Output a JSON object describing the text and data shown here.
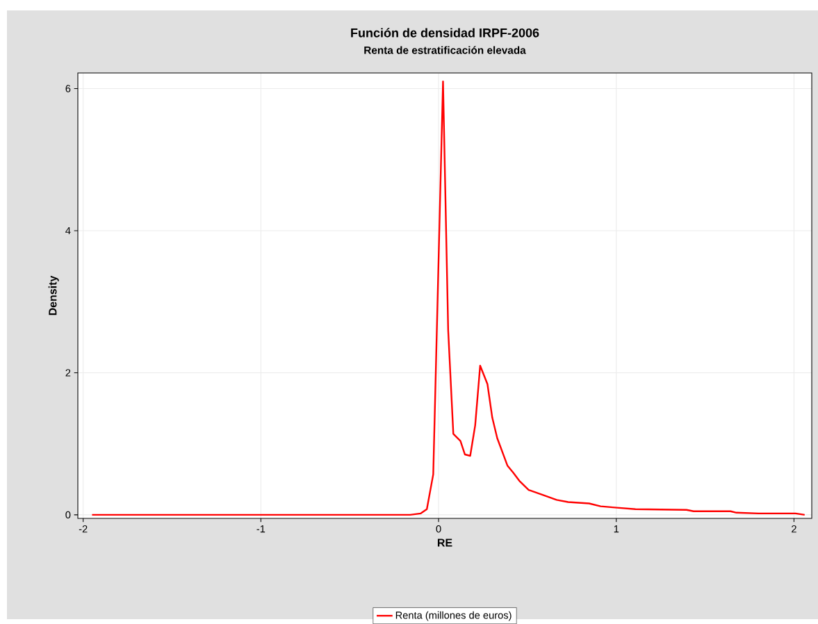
{
  "chart_data": {
    "type": "line",
    "title": "Función de densidad IRPF-2006",
    "subtitle": "Renta de estratificación elevada",
    "xlabel": "RE",
    "ylabel": "Density",
    "xlim": [
      -2.03,
      2.1
    ],
    "ylim": [
      -0.05,
      6.22
    ],
    "xticks": [
      -2,
      -1,
      0,
      1,
      2
    ],
    "yticks": [
      0,
      2,
      4,
      6
    ],
    "grid": true,
    "legend": "bottom",
    "line_style": "solid",
    "marker": "none",
    "series": [
      {
        "name": "Renta (millones de euros)",
        "color": "#ff0000",
        "x": [
          -1.95,
          -0.16,
          -0.1,
          -0.066,
          -0.03,
          0.025,
          0.054,
          0.083,
          0.123,
          0.148,
          0.178,
          0.206,
          0.234,
          0.275,
          0.302,
          0.33,
          0.388,
          0.421,
          0.454,
          0.507,
          0.599,
          0.664,
          0.729,
          0.847,
          0.912,
          1.004,
          1.108,
          1.395,
          1.435,
          1.643,
          1.676,
          1.8,
          2.009,
          2.06
        ],
        "values": [
          0,
          0,
          0.02,
          0.08,
          0.57,
          6.1,
          2.6,
          1.14,
          1.04,
          0.85,
          0.83,
          1.26,
          2.1,
          1.84,
          1.37,
          1.08,
          0.69,
          0.59,
          0.48,
          0.35,
          0.27,
          0.21,
          0.18,
          0.16,
          0.12,
          0.1,
          0.08,
          0.07,
          0.05,
          0.05,
          0.03,
          0.02,
          0.02,
          0
        ]
      }
    ]
  }
}
